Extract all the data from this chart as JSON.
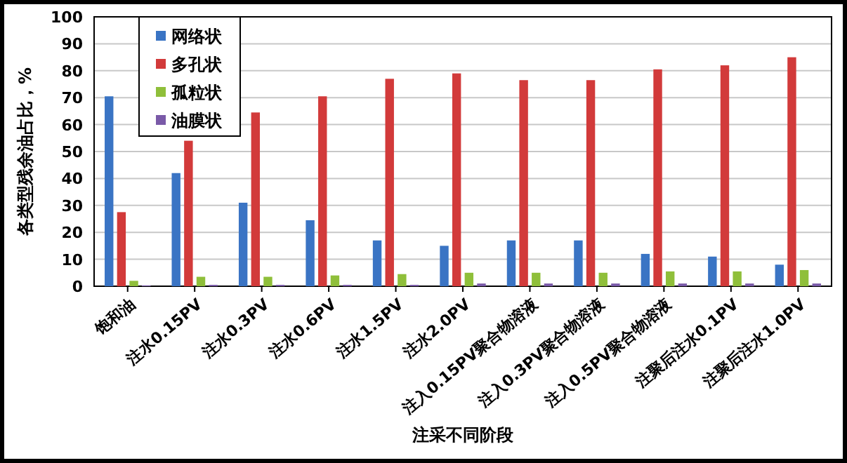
{
  "chart_data": {
    "type": "bar",
    "xlabel": "注采不同阶段",
    "ylabel": "各类型残余油占比，%",
    "categories": [
      "饱和油",
      "注水0.15PV",
      "注水0.3PV",
      "注水0.6PV",
      "注水1.5PV",
      "注水2.0PV",
      "注入0.15PV聚合物溶液",
      "注入0.3PV聚合物溶液",
      "注入0.5PV聚合物溶液",
      "注聚后注水0.1PV",
      "注聚后注水1.0PV"
    ],
    "series": [
      {
        "name": "网络状",
        "color": "#3a74c4",
        "values": [
          70.5,
          42,
          31,
          24.5,
          17,
          15,
          17,
          17,
          12,
          11,
          8
        ]
      },
      {
        "name": "多孔状",
        "color": "#d23a3a",
        "values": [
          27.5,
          54,
          64.5,
          70.5,
          77,
          79,
          76.5,
          76.5,
          80.5,
          82,
          85
        ]
      },
      {
        "name": "孤粒状",
        "color": "#8fbf3a",
        "values": [
          2,
          3.5,
          3.5,
          4,
          4.5,
          5,
          5,
          5,
          5.5,
          5.5,
          6
        ]
      },
      {
        "name": "油膜状",
        "color": "#7a5aa8",
        "values": [
          0.3,
          0.5,
          0.5,
          0.5,
          0.5,
          1,
          1,
          1,
          1,
          1,
          1
        ]
      }
    ],
    "ylim": [
      0,
      100
    ],
    "yticks": [
      0,
      10,
      20,
      30,
      40,
      50,
      60,
      70,
      80,
      90,
      100
    ],
    "grid": "y",
    "legend": "top left"
  }
}
